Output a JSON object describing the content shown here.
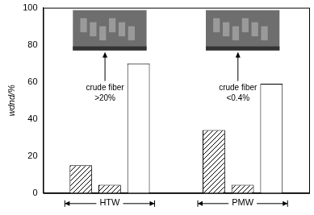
{
  "chart_data": {
    "type": "bar",
    "categories": [
      "HTW",
      "PMW"
    ],
    "series": [
      {
        "color": "#000000",
        "marker": "hatch",
        "values": [
          15,
          34
        ]
      },
      {
        "color": "#000000",
        "marker": "hatch",
        "values": [
          4.5,
          4.5
        ]
      },
      {
        "color": "#ffffff",
        "values": [
          70,
          59
        ]
      }
    ],
    "y_label": "wdnd/%",
    "ylim": [
      0,
      100
    ],
    "yticks": [
      0,
      20,
      40,
      60,
      80,
      100
    ],
    "grid": false,
    "annotations": [
      {
        "text": [
          "crude fiber",
          ">20%"
        ]
      },
      {
        "text": [
          "crude fiber",
          "<0.4%"
        ]
      }
    ]
  }
}
